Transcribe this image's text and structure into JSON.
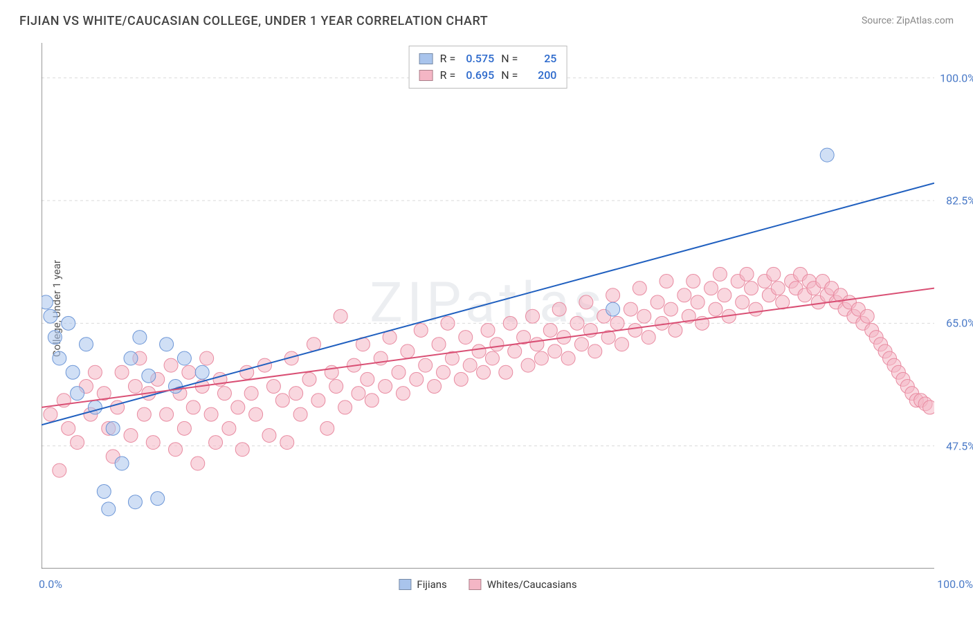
{
  "title": "FIJIAN VS WHITE/CAUCASIAN COLLEGE, UNDER 1 YEAR CORRELATION CHART",
  "source": "Source: ZipAtlas.com",
  "watermark": "ZIPatlas",
  "ylabel": "College, Under 1 year",
  "chart": {
    "type": "scatter",
    "background_color": "#ffffff",
    "grid_color": "#d9d9d9",
    "axis_color": "#555555",
    "tick_color": "#4a7ac7",
    "xlim": [
      0,
      100
    ],
    "ylim": [
      30,
      105
    ],
    "x_tick_labels": {
      "left": "0.0%",
      "right": "100.0%"
    },
    "y_grid": [
      {
        "v": 47.5,
        "label": "47.5%"
      },
      {
        "v": 65.0,
        "label": "65.0%"
      },
      {
        "v": 82.5,
        "label": "82.5%"
      },
      {
        "v": 100.0,
        "label": "100.0%"
      }
    ],
    "x_ticks_minor": [
      0,
      12.5,
      25,
      37.5,
      50,
      62.5,
      75,
      87.5,
      100
    ],
    "series": [
      {
        "name": "Fijians",
        "color_fill": "#a9c4ec",
        "color_stroke": "#6b95d6",
        "marker_radius": 10,
        "fill_opacity": 0.55,
        "line_color": "#1f5fbf",
        "line_width": 2,
        "R": "0.575",
        "N": "25",
        "trend": {
          "x1": 0,
          "y1": 50.5,
          "x2": 100,
          "y2": 85.0
        },
        "points": [
          [
            0.5,
            68
          ],
          [
            1,
            66
          ],
          [
            1.5,
            63
          ],
          [
            2,
            60
          ],
          [
            3,
            65
          ],
          [
            3.5,
            58
          ],
          [
            4,
            55
          ],
          [
            5,
            62
          ],
          [
            6,
            53
          ],
          [
            7,
            41
          ],
          [
            7.5,
            38.5
          ],
          [
            8,
            50
          ],
          [
            9,
            45
          ],
          [
            10,
            60
          ],
          [
            10.5,
            39.5
          ],
          [
            11,
            63
          ],
          [
            12,
            57.5
          ],
          [
            13,
            40
          ],
          [
            14,
            62
          ],
          [
            15,
            56
          ],
          [
            16,
            60
          ],
          [
            18,
            58
          ],
          [
            64,
            67
          ],
          [
            88,
            89
          ]
        ]
      },
      {
        "name": "Whites/Caucasians",
        "color_fill": "#f4b6c5",
        "color_stroke": "#e88aa0",
        "marker_radius": 10,
        "fill_opacity": 0.55,
        "line_color": "#d94f74",
        "line_width": 2,
        "R": "0.695",
        "N": "200",
        "trend": {
          "x1": 0,
          "y1": 53.0,
          "x2": 100,
          "y2": 70.0
        },
        "points": [
          [
            1,
            52
          ],
          [
            2,
            44
          ],
          [
            2.5,
            54
          ],
          [
            3,
            50
          ],
          [
            4,
            48
          ],
          [
            5,
            56
          ],
          [
            5.5,
            52
          ],
          [
            6,
            58
          ],
          [
            7,
            55
          ],
          [
            7.5,
            50
          ],
          [
            8,
            46
          ],
          [
            8.5,
            53
          ],
          [
            9,
            58
          ],
          [
            10,
            49
          ],
          [
            10.5,
            56
          ],
          [
            11,
            60
          ],
          [
            11.5,
            52
          ],
          [
            12,
            55
          ],
          [
            12.5,
            48
          ],
          [
            13,
            57
          ],
          [
            14,
            52
          ],
          [
            14.5,
            59
          ],
          [
            15,
            47
          ],
          [
            15.5,
            55
          ],
          [
            16,
            50
          ],
          [
            16.5,
            58
          ],
          [
            17,
            53
          ],
          [
            17.5,
            45
          ],
          [
            18,
            56
          ],
          [
            18.5,
            60
          ],
          [
            19,
            52
          ],
          [
            19.5,
            48
          ],
          [
            20,
            57
          ],
          [
            20.5,
            55
          ],
          [
            21,
            50
          ],
          [
            22,
            53
          ],
          [
            22.5,
            47
          ],
          [
            23,
            58
          ],
          [
            23.5,
            55
          ],
          [
            24,
            52
          ],
          [
            25,
            59
          ],
          [
            25.5,
            49
          ],
          [
            26,
            56
          ],
          [
            27,
            54
          ],
          [
            27.5,
            48
          ],
          [
            28,
            60
          ],
          [
            28.5,
            55
          ],
          [
            29,
            52
          ],
          [
            30,
            57
          ],
          [
            30.5,
            62
          ],
          [
            31,
            54
          ],
          [
            32,
            50
          ],
          [
            32.5,
            58
          ],
          [
            33,
            56
          ],
          [
            33.5,
            66
          ],
          [
            34,
            53
          ],
          [
            35,
            59
          ],
          [
            35.5,
            55
          ],
          [
            36,
            62
          ],
          [
            36.5,
            57
          ],
          [
            37,
            54
          ],
          [
            38,
            60
          ],
          [
            38.5,
            56
          ],
          [
            39,
            63
          ],
          [
            40,
            58
          ],
          [
            40.5,
            55
          ],
          [
            41,
            61
          ],
          [
            42,
            57
          ],
          [
            42.5,
            64
          ],
          [
            43,
            59
          ],
          [
            44,
            56
          ],
          [
            44.5,
            62
          ],
          [
            45,
            58
          ],
          [
            45.5,
            65
          ],
          [
            46,
            60
          ],
          [
            47,
            57
          ],
          [
            47.5,
            63
          ],
          [
            48,
            59
          ],
          [
            49,
            61
          ],
          [
            49.5,
            58
          ],
          [
            50,
            64
          ],
          [
            50.5,
            60
          ],
          [
            51,
            62
          ],
          [
            52,
            58
          ],
          [
            52.5,
            65
          ],
          [
            53,
            61
          ],
          [
            54,
            63
          ],
          [
            54.5,
            59
          ],
          [
            55,
            66
          ],
          [
            55.5,
            62
          ],
          [
            56,
            60
          ],
          [
            57,
            64
          ],
          [
            57.5,
            61
          ],
          [
            58,
            67
          ],
          [
            58.5,
            63
          ],
          [
            59,
            60
          ],
          [
            60,
            65
          ],
          [
            60.5,
            62
          ],
          [
            61,
            68
          ],
          [
            61.5,
            64
          ],
          [
            62,
            61
          ],
          [
            63,
            66
          ],
          [
            63.5,
            63
          ],
          [
            64,
            69
          ],
          [
            64.5,
            65
          ],
          [
            65,
            62
          ],
          [
            66,
            67
          ],
          [
            66.5,
            64
          ],
          [
            67,
            70
          ],
          [
            67.5,
            66
          ],
          [
            68,
            63
          ],
          [
            69,
            68
          ],
          [
            69.5,
            65
          ],
          [
            70,
            71
          ],
          [
            70.5,
            67
          ],
          [
            71,
            64
          ],
          [
            72,
            69
          ],
          [
            72.5,
            66
          ],
          [
            73,
            71
          ],
          [
            73.5,
            68
          ],
          [
            74,
            65
          ],
          [
            75,
            70
          ],
          [
            75.5,
            67
          ],
          [
            76,
            72
          ],
          [
            76.5,
            69
          ],
          [
            77,
            66
          ],
          [
            78,
            71
          ],
          [
            78.5,
            68
          ],
          [
            79,
            72
          ],
          [
            79.5,
            70
          ],
          [
            80,
            67
          ],
          [
            81,
            71
          ],
          [
            81.5,
            69
          ],
          [
            82,
            72
          ],
          [
            82.5,
            70
          ],
          [
            83,
            68
          ],
          [
            84,
            71
          ],
          [
            84.5,
            70
          ],
          [
            85,
            72
          ],
          [
            85.5,
            69
          ],
          [
            86,
            71
          ],
          [
            86.5,
            70
          ],
          [
            87,
            68
          ],
          [
            87.5,
            71
          ],
          [
            88,
            69
          ],
          [
            88.5,
            70
          ],
          [
            89,
            68
          ],
          [
            89.5,
            69
          ],
          [
            90,
            67
          ],
          [
            90.5,
            68
          ],
          [
            91,
            66
          ],
          [
            91.5,
            67
          ],
          [
            92,
            65
          ],
          [
            92.5,
            66
          ],
          [
            93,
            64
          ],
          [
            93.5,
            63
          ],
          [
            94,
            62
          ],
          [
            94.5,
            61
          ],
          [
            95,
            60
          ],
          [
            95.5,
            59
          ],
          [
            96,
            58
          ],
          [
            96.5,
            57
          ],
          [
            97,
            56
          ],
          [
            97.5,
            55
          ],
          [
            98,
            54
          ],
          [
            98.5,
            54
          ],
          [
            99,
            53.5
          ],
          [
            99.5,
            53
          ]
        ]
      }
    ]
  },
  "legend_top": {
    "r_label": "R =",
    "n_label": "N ="
  },
  "bottom_legend": {
    "items": [
      "Fijians",
      "Whites/Caucasians"
    ]
  }
}
